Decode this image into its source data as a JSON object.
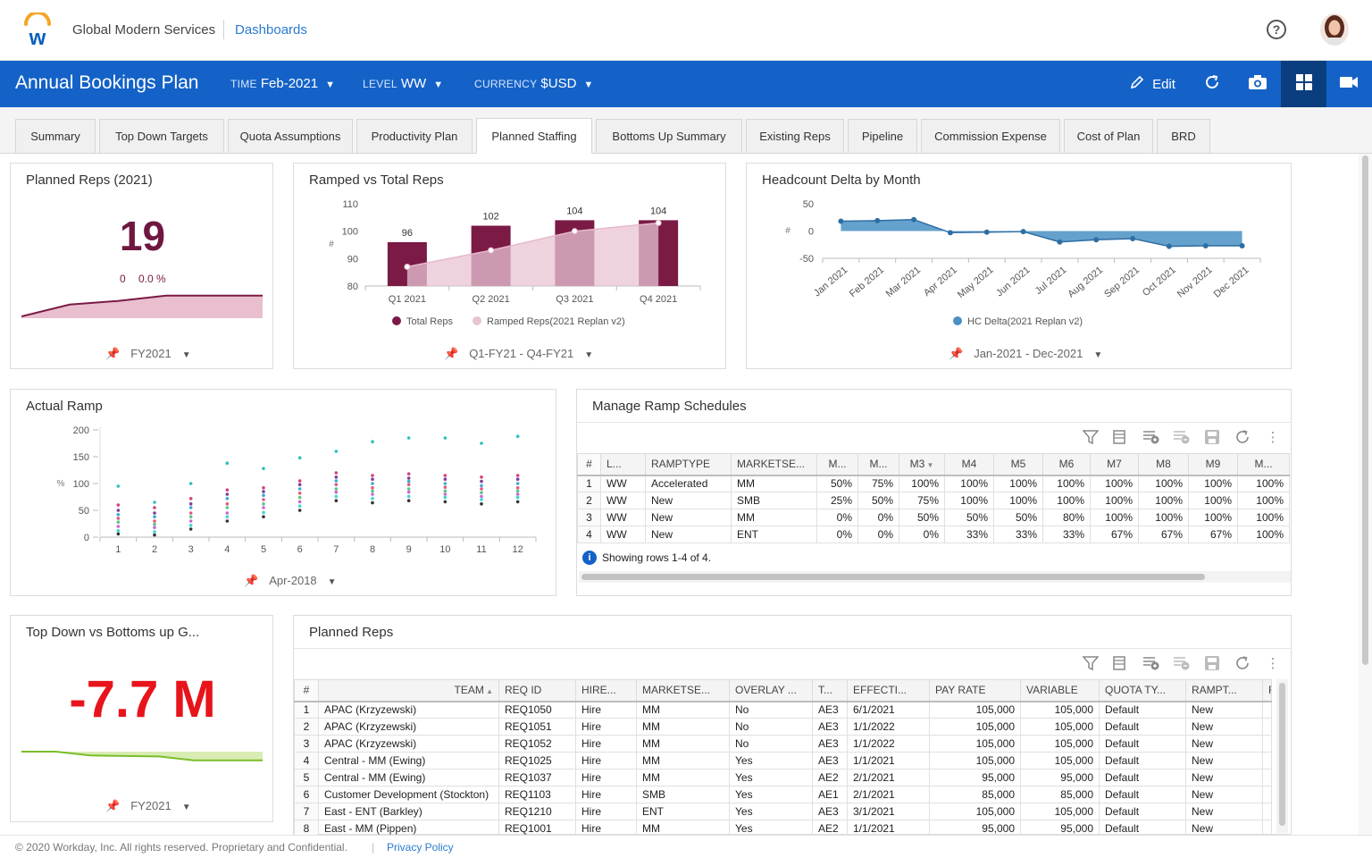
{
  "header": {
    "org": "Global Modern Services",
    "breadcrumb": "Dashboards",
    "help_icon": "?"
  },
  "toolbar": {
    "title": "Annual Bookings Plan",
    "filters": [
      {
        "label": "TIME",
        "value": "Feb-2021"
      },
      {
        "label": "LEVEL",
        "value": "WW"
      },
      {
        "label": "CURRENCY",
        "value": "$USD"
      }
    ],
    "edit_label": "Edit",
    "accent": "#1462c7"
  },
  "tabs": [
    "Summary",
    "Top Down Targets",
    "Quota Assumptions",
    "Productivity Plan",
    "Planned Staffing",
    "Bottoms Up Summary",
    "Existing Reps",
    "Pipeline",
    "Commission Expense",
    "Cost of Plan",
    "BRD"
  ],
  "active_tab": "Planned Staffing",
  "planned_reps_kpi": {
    "title": "Planned Reps (2021)",
    "value": "19",
    "delta": "0",
    "delta_pct": "0.0 %",
    "filter": "FY2021",
    "sparkline": [
      0.0,
      0.5,
      0.7,
      1.0,
      1.0,
      1.0
    ]
  },
  "ramped_vs_total": {
    "title": "Ramped vs Total Reps",
    "filter": "Q1-FY21 - Q4-FY21",
    "chart_data": {
      "type": "bar",
      "categories": [
        "Q1 2021",
        "Q2 2021",
        "Q3 2021",
        "Q4 2021"
      ],
      "series": [
        {
          "name": "Total Reps",
          "values": [
            96,
            102,
            104,
            104
          ],
          "color": "#7a1a45"
        },
        {
          "name": "Ramped Reps(2021 Replan v2)",
          "values": [
            87,
            93,
            100,
            103
          ],
          "color": "#e8c4d4"
        }
      ],
      "ylabel": "#",
      "ylim": [
        80,
        110
      ],
      "yticks": [
        80,
        90,
        100,
        110
      ]
    }
  },
  "headcount_delta": {
    "title": "Headcount Delta by Month",
    "filter": "Jan-2021 - Dec-2021",
    "chart_data": {
      "type": "area",
      "categories": [
        "Jan 2021",
        "Feb 2021",
        "Mar 2021",
        "Apr 2021",
        "May 2021",
        "Jun 2021",
        "Jul 2021",
        "Aug 2021",
        "Sep 2021",
        "Oct 2021",
        "Nov 2021",
        "Dec 2021"
      ],
      "series": [
        {
          "name": "HC Delta(2021 Replan v2)",
          "values": [
            18,
            19,
            21,
            -3,
            -2,
            -1,
            -20,
            -16,
            -14,
            -28,
            -27,
            -27
          ],
          "color": "#4a90c4"
        }
      ],
      "ylabel": "#",
      "ylim": [
        -50,
        50
      ],
      "yticks": [
        -50,
        0,
        50
      ]
    }
  },
  "actual_ramp": {
    "title": "Actual Ramp",
    "filter": "Apr-2018",
    "chart_data": {
      "type": "scatter",
      "x": [
        1,
        2,
        3,
        4,
        5,
        6,
        7,
        8,
        9,
        10,
        11,
        12
      ],
      "ylabel": "%",
      "ylim": [
        0,
        200
      ],
      "yticks": [
        0,
        50,
        100,
        150,
        200
      ],
      "series": [
        {
          "values": [
            95,
            65,
            100,
            138,
            128,
            148,
            160,
            178,
            185,
            185,
            175,
            188
          ],
          "color": "#2bbfbf"
        },
        {
          "values": [
            60,
            55,
            72,
            88,
            92,
            105,
            120,
            115,
            118,
            115,
            112,
            115
          ],
          "color": "#d63f7a"
        },
        {
          "values": [
            50,
            45,
            62,
            80,
            85,
            98,
            112,
            108,
            110,
            108,
            104,
            108
          ],
          "color": "#7a3f9c"
        },
        {
          "values": [
            42,
            38,
            55,
            72,
            78,
            90,
            105,
            100,
            104,
            100,
            96,
            100
          ],
          "color": "#3fa6d6"
        },
        {
          "values": [
            35,
            30,
            45,
            62,
            70,
            82,
            98,
            92,
            98,
            93,
            90,
            92
          ],
          "color": "#e05a7c"
        },
        {
          "values": [
            28,
            24,
            38,
            55,
            62,
            74,
            90,
            86,
            90,
            86,
            83,
            86
          ],
          "color": "#5cc48b"
        },
        {
          "values": [
            20,
            18,
            30,
            45,
            55,
            66,
            84,
            80,
            84,
            80,
            76,
            80
          ],
          "color": "#c766d6"
        },
        {
          "values": [
            12,
            10,
            22,
            38,
            46,
            58,
            76,
            72,
            76,
            74,
            70,
            74
          ],
          "color": "#3fd6d0"
        },
        {
          "values": [
            6,
            4,
            15,
            30,
            38,
            50,
            68,
            64,
            68,
            66,
            62,
            66
          ],
          "color": "#333333"
        }
      ]
    }
  },
  "ramp_schedules": {
    "title": "Manage Ramp Schedules",
    "columns": [
      "#",
      "L...",
      "RAMPTYPE",
      "MARKETSE...",
      "M...",
      "M...",
      "M3",
      "M4",
      "M5",
      "M6",
      "M7",
      "M8",
      "M9",
      "M..."
    ],
    "rows": [
      [
        "1",
        "WW",
        "Accelerated",
        "MM",
        "50%",
        "75%",
        "100%",
        "100%",
        "100%",
        "100%",
        "100%",
        "100%",
        "100%",
        "100%"
      ],
      [
        "2",
        "WW",
        "New",
        "SMB",
        "25%",
        "50%",
        "75%",
        "100%",
        "100%",
        "100%",
        "100%",
        "100%",
        "100%",
        "100%"
      ],
      [
        "3",
        "WW",
        "New",
        "MM",
        "0%",
        "0%",
        "50%",
        "50%",
        "50%",
        "80%",
        "100%",
        "100%",
        "100%",
        "100%"
      ],
      [
        "4",
        "WW",
        "New",
        "ENT",
        "0%",
        "0%",
        "0%",
        "33%",
        "33%",
        "33%",
        "67%",
        "67%",
        "67%",
        "100%"
      ]
    ],
    "status": "Showing rows 1-4 of 4."
  },
  "topdown_kpi": {
    "title": "Top Down vs Bottoms up G...",
    "value": "-7.7 M",
    "value_color": "#e8141b",
    "filter": "FY2021",
    "sparkline": [
      1.0,
      1.0,
      0.7,
      0.65,
      0.62,
      0.3,
      0.3,
      0.3
    ]
  },
  "planned_reps_table": {
    "title": "Planned Reps",
    "columns": [
      "#",
      "TEAM",
      "REQ ID",
      "HIRE...",
      "MARKETSE...",
      "OVERLAY ...",
      "T...",
      "EFFECTI...",
      "PAY RATE",
      "VARIABLE",
      "QUOTA TY...",
      "RAMPT...",
      "F"
    ],
    "rows": [
      [
        "1",
        "APAC (Krzyzewski)",
        "REQ1050",
        "Hire",
        "MM",
        "No",
        "AE3",
        "6/1/2021",
        "105,000",
        "105,000",
        "Default",
        "New"
      ],
      [
        "2",
        "APAC (Krzyzewski)",
        "REQ1051",
        "Hire",
        "MM",
        "No",
        "AE3",
        "1/1/2022",
        "105,000",
        "105,000",
        "Default",
        "New"
      ],
      [
        "3",
        "APAC (Krzyzewski)",
        "REQ1052",
        "Hire",
        "MM",
        "No",
        "AE3",
        "1/1/2022",
        "105,000",
        "105,000",
        "Default",
        "New"
      ],
      [
        "4",
        "Central - MM (Ewing)",
        "REQ1025",
        "Hire",
        "MM",
        "Yes",
        "AE3",
        "1/1/2021",
        "105,000",
        "105,000",
        "Default",
        "New"
      ],
      [
        "5",
        "Central - MM (Ewing)",
        "REQ1037",
        "Hire",
        "MM",
        "Yes",
        "AE2",
        "2/1/2021",
        "95,000",
        "95,000",
        "Default",
        "New"
      ],
      [
        "6",
        "Customer Development (Stockton)",
        "REQ1103",
        "Hire",
        "SMB",
        "Yes",
        "AE1",
        "2/1/2021",
        "85,000",
        "85,000",
        "Default",
        "New"
      ],
      [
        "7",
        "East - ENT (Barkley)",
        "REQ1210",
        "Hire",
        "ENT",
        "Yes",
        "AE3",
        "3/1/2021",
        "105,000",
        "105,000",
        "Default",
        "New"
      ],
      [
        "8",
        "East - MM (Pippen)",
        "REQ1001",
        "Hire",
        "MM",
        "Yes",
        "AE2",
        "1/1/2021",
        "95,000",
        "95,000",
        "Default",
        "New"
      ]
    ]
  },
  "footer": {
    "copyright": "© 2020 Workday, Inc. All rights reserved. Proprietary and Confidential.",
    "separator": "|",
    "privacy": "Privacy Policy"
  }
}
